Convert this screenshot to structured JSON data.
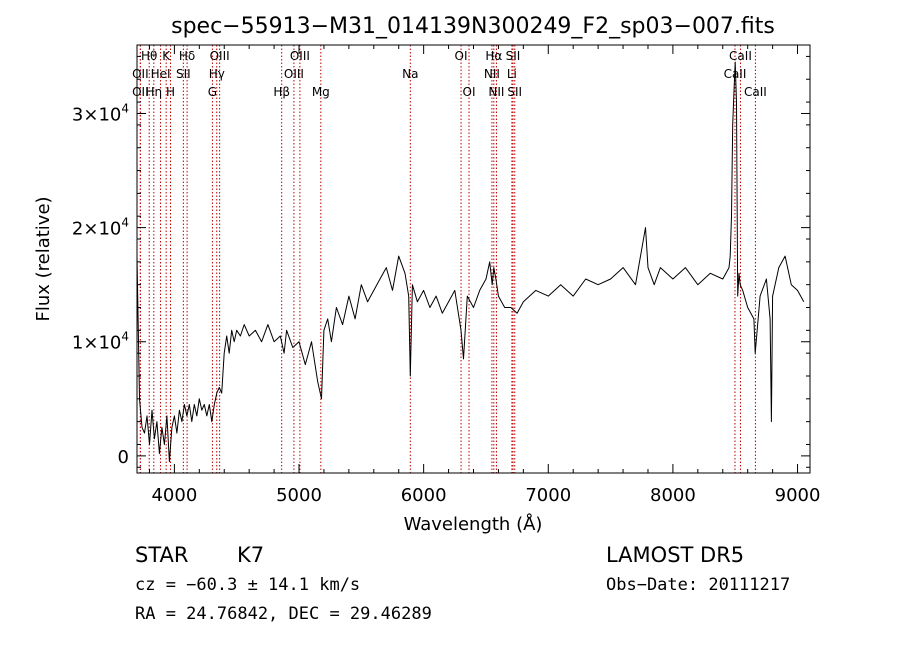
{
  "chart_data": {
    "type": "line",
    "title": "spec−55913−M31_014139N300249_F2_sp03−007.fits",
    "xlabel": "Wavelength (Å)",
    "ylabel": "Flux (relative)",
    "xlim": [
      3700,
      9100
    ],
    "ylim": [
      -1500,
      36000
    ],
    "x_ticks": [
      {
        "value": 4000,
        "label": "4000"
      },
      {
        "value": 5000,
        "label": "5000"
      },
      {
        "value": 6000,
        "label": "6000"
      },
      {
        "value": 7000,
        "label": "7000"
      },
      {
        "value": 8000,
        "label": "8000"
      },
      {
        "value": 9000,
        "label": "9000"
      }
    ],
    "y_ticks": [
      {
        "value": 0,
        "mantissa": "0",
        "exp": ""
      },
      {
        "value": 10000,
        "mantissa": "1×10",
        "exp": "4"
      },
      {
        "value": 20000,
        "mantissa": "2×10",
        "exp": "4"
      },
      {
        "value": 30000,
        "mantissa": "3×10",
        "exp": "4"
      }
    ],
    "spectral_lines": [
      {
        "label": "Hθ",
        "wave": 3798,
        "row": 0
      },
      {
        "label": "OII",
        "wave": 3727,
        "row": 1
      },
      {
        "label": "OII",
        "wave": 3727,
        "row": 2
      },
      {
        "label": "Hη",
        "wave": 3835,
        "row": 2
      },
      {
        "label": "K",
        "wave": 3934,
        "row": 0
      },
      {
        "label": "HeI",
        "wave": 3889,
        "row": 1
      },
      {
        "label": "H",
        "wave": 3969,
        "row": 2
      },
      {
        "label": "Hδ",
        "wave": 4102,
        "row": 0
      },
      {
        "label": "SII",
        "wave": 4072,
        "row": 1
      },
      {
        "label": "OIII",
        "wave": 4363,
        "row": 0
      },
      {
        "label": "Hγ",
        "wave": 4340,
        "row": 1
      },
      {
        "label": "G",
        "wave": 4305,
        "row": 2
      },
      {
        "label": "Hβ",
        "wave": 4861,
        "row": 2
      },
      {
        "label": "OIII",
        "wave": 5007,
        "row": 0
      },
      {
        "label": "OIII",
        "wave": 4959,
        "row": 1
      },
      {
        "label": "Mg",
        "wave": 5175,
        "row": 2
      },
      {
        "label": "Na",
        "wave": 5893,
        "row": 1
      },
      {
        "label": "OI",
        "wave": 6300,
        "row": 0
      },
      {
        "label": "OI",
        "wave": 6364,
        "row": 2
      },
      {
        "label": "Hα",
        "wave": 6563,
        "row": 0
      },
      {
        "label": "NII",
        "wave": 6548,
        "row": 1
      },
      {
        "label": "NII",
        "wave": 6584,
        "row": 2
      },
      {
        "label": "SII",
        "wave": 6717,
        "row": 0
      },
      {
        "label": "Li",
        "wave": 6708,
        "row": 1
      },
      {
        "label": "SII",
        "wave": 6731,
        "row": 2
      },
      {
        "label": "CaII",
        "wave": 8542,
        "row": 0
      },
      {
        "label": "CaII",
        "wave": 8498,
        "row": 1
      },
      {
        "label": "CaII",
        "wave": 8662,
        "row": 2
      }
    ],
    "series": [
      {
        "x": [
          3700,
          3720,
          3740,
          3760,
          3780,
          3800,
          3820,
          3840,
          3860,
          3880,
          3900,
          3920,
          3940,
          3960,
          3980,
          4000,
          4020,
          4040,
          4060,
          4080,
          4100,
          4120,
          4140,
          4160,
          4180,
          4200,
          4220,
          4240,
          4260,
          4280,
          4300,
          4320,
          4340,
          4360,
          4380,
          4400,
          4420,
          4440,
          4460,
          4480,
          4500,
          4530,
          4560,
          4600,
          4650,
          4700,
          4750,
          4800,
          4850,
          4880,
          4900,
          4950,
          5000,
          5050,
          5100,
          5150,
          5180,
          5200,
          5230,
          5260,
          5300,
          5350,
          5400,
          5450,
          5500,
          5550,
          5600,
          5650,
          5700,
          5750,
          5800,
          5850,
          5880,
          5893,
          5910,
          5950,
          6000,
          6050,
          6100,
          6150,
          6200,
          6250,
          6300,
          6320,
          6350,
          6400,
          6450,
          6500,
          6530,
          6550,
          6563,
          6580,
          6600,
          6650,
          6700,
          6750,
          6800,
          6900,
          7000,
          7100,
          7200,
          7300,
          7400,
          7500,
          7600,
          7700,
          7780,
          7800,
          7850,
          7900,
          8000,
          8100,
          8200,
          8300,
          8400,
          8450,
          8460,
          8470,
          8480,
          8490,
          8500,
          8510,
          8520,
          8530,
          8540,
          8560,
          8600,
          8650,
          8660,
          8700,
          8750,
          8780,
          8790,
          8800,
          8850,
          8900,
          8950,
          9000,
          9050
        ],
        "y": [
          17500,
          5000,
          2500,
          2000,
          3500,
          1000,
          4000,
          1500,
          3000,
          200,
          2500,
          1000,
          3500,
          -500,
          2500,
          3500,
          2000,
          4000,
          3000,
          4500,
          3500,
          4500,
          3000,
          4500,
          3500,
          5000,
          4000,
          4500,
          3500,
          4500,
          3000,
          4500,
          5500,
          6000,
          5500,
          9000,
          10500,
          9000,
          11000,
          10000,
          11000,
          10500,
          11500,
          10500,
          11000,
          10000,
          11500,
          10000,
          10500,
          9000,
          11000,
          9500,
          10000,
          8000,
          10000,
          6500,
          5000,
          11000,
          12000,
          10000,
          13000,
          11500,
          14000,
          12000,
          15000,
          13500,
          14500,
          15500,
          16500,
          14500,
          17500,
          16000,
          14000,
          7000,
          15000,
          13500,
          14500,
          13000,
          14000,
          12500,
          13500,
          14500,
          11000,
          8500,
          14000,
          13000,
          14500,
          15500,
          17000,
          15000,
          16500,
          15500,
          14000,
          13000,
          13000,
          12500,
          13500,
          14500,
          14000,
          15000,
          14000,
          15500,
          15000,
          15500,
          16500,
          15000,
          20000,
          16500,
          15000,
          16500,
          15500,
          16500,
          15000,
          16000,
          15500,
          16500,
          17500,
          21000,
          29000,
          32000,
          34500,
          31000,
          14000,
          16000,
          15000,
          14500,
          13000,
          12000,
          9000,
          14000,
          15500,
          12000,
          3000,
          14000,
          16500,
          17500,
          15000,
          14500,
          13500
        ]
      }
    ]
  },
  "footer": {
    "class_label": "STAR",
    "subclass": "K7",
    "survey": "LAMOST  DR5",
    "cz_line": "cz = −60.3 ± 14.1 km/s",
    "obs_date": "Obs−Date: 20111217",
    "coords": "RA =  24.76842, DEC =  29.46289"
  }
}
